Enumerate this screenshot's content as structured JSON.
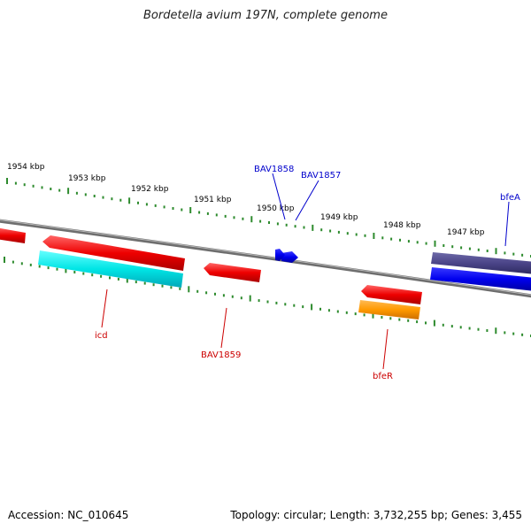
{
  "title": "Bordetella avium 197N, complete genome",
  "footer": {
    "accession": "Accession: NC_010645",
    "summary": "Topology: circular; Length: 3,732,255 bp; Genes: 3,455"
  },
  "ticks": {
    "color": "#2e8b2e",
    "labels": [
      "1954 kbp",
      "1953 kbp",
      "1952 kbp",
      "1951 kbp",
      "1950 kbp",
      "1949 kbp",
      "1948 kbp",
      "1947 kbp"
    ]
  },
  "genes": {
    "forward_color": "#0000cc",
    "reverse_color": "#cc0000",
    "labels": {
      "bav1858": "BAV1858",
      "bav1857": "BAV1857",
      "bfea": "bfeA",
      "icd": "icd",
      "bav1859": "BAV1859",
      "bfer": "bfeR"
    }
  }
}
